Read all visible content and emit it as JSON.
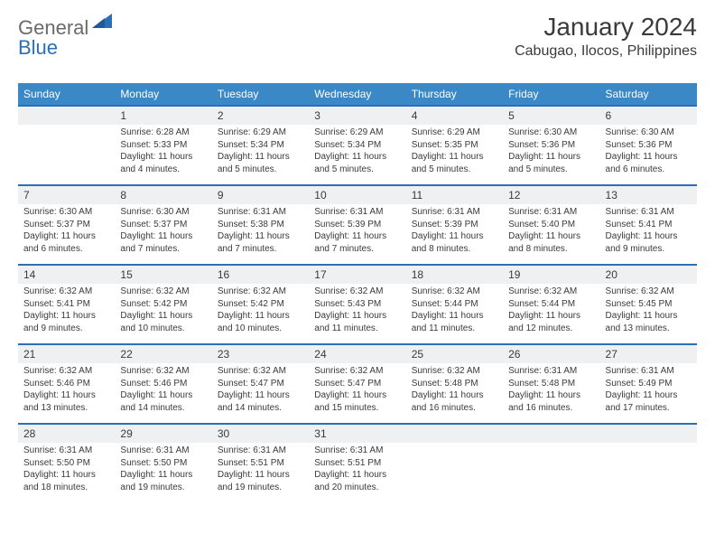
{
  "logo": {
    "text1": "General",
    "text2": "Blue",
    "triangle_color": "#2d6fb5"
  },
  "header": {
    "title": "January 2024",
    "location": "Cabugao, Ilocos, Philippines"
  },
  "colors": {
    "header_row_bg": "#3a88c6",
    "header_row_text": "#ffffff",
    "daynum_bg": "#eef0f1",
    "border_top": "#2d6fb5",
    "body_text": "#3a3a3a",
    "page_bg": "#ffffff"
  },
  "daysOfWeek": [
    "Sunday",
    "Monday",
    "Tuesday",
    "Wednesday",
    "Thursday",
    "Friday",
    "Saturday"
  ],
  "weeks": [
    [
      {
        "num": "",
        "sunrise": "",
        "sunset": "",
        "daylight": ""
      },
      {
        "num": "1",
        "sunrise": "Sunrise: 6:28 AM",
        "sunset": "Sunset: 5:33 PM",
        "daylight": "Daylight: 11 hours and 4 minutes."
      },
      {
        "num": "2",
        "sunrise": "Sunrise: 6:29 AM",
        "sunset": "Sunset: 5:34 PM",
        "daylight": "Daylight: 11 hours and 5 minutes."
      },
      {
        "num": "3",
        "sunrise": "Sunrise: 6:29 AM",
        "sunset": "Sunset: 5:34 PM",
        "daylight": "Daylight: 11 hours and 5 minutes."
      },
      {
        "num": "4",
        "sunrise": "Sunrise: 6:29 AM",
        "sunset": "Sunset: 5:35 PM",
        "daylight": "Daylight: 11 hours and 5 minutes."
      },
      {
        "num": "5",
        "sunrise": "Sunrise: 6:30 AM",
        "sunset": "Sunset: 5:36 PM",
        "daylight": "Daylight: 11 hours and 5 minutes."
      },
      {
        "num": "6",
        "sunrise": "Sunrise: 6:30 AM",
        "sunset": "Sunset: 5:36 PM",
        "daylight": "Daylight: 11 hours and 6 minutes."
      }
    ],
    [
      {
        "num": "7",
        "sunrise": "Sunrise: 6:30 AM",
        "sunset": "Sunset: 5:37 PM",
        "daylight": "Daylight: 11 hours and 6 minutes."
      },
      {
        "num": "8",
        "sunrise": "Sunrise: 6:30 AM",
        "sunset": "Sunset: 5:37 PM",
        "daylight": "Daylight: 11 hours and 7 minutes."
      },
      {
        "num": "9",
        "sunrise": "Sunrise: 6:31 AM",
        "sunset": "Sunset: 5:38 PM",
        "daylight": "Daylight: 11 hours and 7 minutes."
      },
      {
        "num": "10",
        "sunrise": "Sunrise: 6:31 AM",
        "sunset": "Sunset: 5:39 PM",
        "daylight": "Daylight: 11 hours and 7 minutes."
      },
      {
        "num": "11",
        "sunrise": "Sunrise: 6:31 AM",
        "sunset": "Sunset: 5:39 PM",
        "daylight": "Daylight: 11 hours and 8 minutes."
      },
      {
        "num": "12",
        "sunrise": "Sunrise: 6:31 AM",
        "sunset": "Sunset: 5:40 PM",
        "daylight": "Daylight: 11 hours and 8 minutes."
      },
      {
        "num": "13",
        "sunrise": "Sunrise: 6:31 AM",
        "sunset": "Sunset: 5:41 PM",
        "daylight": "Daylight: 11 hours and 9 minutes."
      }
    ],
    [
      {
        "num": "14",
        "sunrise": "Sunrise: 6:32 AM",
        "sunset": "Sunset: 5:41 PM",
        "daylight": "Daylight: 11 hours and 9 minutes."
      },
      {
        "num": "15",
        "sunrise": "Sunrise: 6:32 AM",
        "sunset": "Sunset: 5:42 PM",
        "daylight": "Daylight: 11 hours and 10 minutes."
      },
      {
        "num": "16",
        "sunrise": "Sunrise: 6:32 AM",
        "sunset": "Sunset: 5:42 PM",
        "daylight": "Daylight: 11 hours and 10 minutes."
      },
      {
        "num": "17",
        "sunrise": "Sunrise: 6:32 AM",
        "sunset": "Sunset: 5:43 PM",
        "daylight": "Daylight: 11 hours and 11 minutes."
      },
      {
        "num": "18",
        "sunrise": "Sunrise: 6:32 AM",
        "sunset": "Sunset: 5:44 PM",
        "daylight": "Daylight: 11 hours and 11 minutes."
      },
      {
        "num": "19",
        "sunrise": "Sunrise: 6:32 AM",
        "sunset": "Sunset: 5:44 PM",
        "daylight": "Daylight: 11 hours and 12 minutes."
      },
      {
        "num": "20",
        "sunrise": "Sunrise: 6:32 AM",
        "sunset": "Sunset: 5:45 PM",
        "daylight": "Daylight: 11 hours and 13 minutes."
      }
    ],
    [
      {
        "num": "21",
        "sunrise": "Sunrise: 6:32 AM",
        "sunset": "Sunset: 5:46 PM",
        "daylight": "Daylight: 11 hours and 13 minutes."
      },
      {
        "num": "22",
        "sunrise": "Sunrise: 6:32 AM",
        "sunset": "Sunset: 5:46 PM",
        "daylight": "Daylight: 11 hours and 14 minutes."
      },
      {
        "num": "23",
        "sunrise": "Sunrise: 6:32 AM",
        "sunset": "Sunset: 5:47 PM",
        "daylight": "Daylight: 11 hours and 14 minutes."
      },
      {
        "num": "24",
        "sunrise": "Sunrise: 6:32 AM",
        "sunset": "Sunset: 5:47 PM",
        "daylight": "Daylight: 11 hours and 15 minutes."
      },
      {
        "num": "25",
        "sunrise": "Sunrise: 6:32 AM",
        "sunset": "Sunset: 5:48 PM",
        "daylight": "Daylight: 11 hours and 16 minutes."
      },
      {
        "num": "26",
        "sunrise": "Sunrise: 6:31 AM",
        "sunset": "Sunset: 5:48 PM",
        "daylight": "Daylight: 11 hours and 16 minutes."
      },
      {
        "num": "27",
        "sunrise": "Sunrise: 6:31 AM",
        "sunset": "Sunset: 5:49 PM",
        "daylight": "Daylight: 11 hours and 17 minutes."
      }
    ],
    [
      {
        "num": "28",
        "sunrise": "Sunrise: 6:31 AM",
        "sunset": "Sunset: 5:50 PM",
        "daylight": "Daylight: 11 hours and 18 minutes."
      },
      {
        "num": "29",
        "sunrise": "Sunrise: 6:31 AM",
        "sunset": "Sunset: 5:50 PM",
        "daylight": "Daylight: 11 hours and 19 minutes."
      },
      {
        "num": "30",
        "sunrise": "Sunrise: 6:31 AM",
        "sunset": "Sunset: 5:51 PM",
        "daylight": "Daylight: 11 hours and 19 minutes."
      },
      {
        "num": "31",
        "sunrise": "Sunrise: 6:31 AM",
        "sunset": "Sunset: 5:51 PM",
        "daylight": "Daylight: 11 hours and 20 minutes."
      },
      {
        "num": "",
        "sunrise": "",
        "sunset": "",
        "daylight": ""
      },
      {
        "num": "",
        "sunrise": "",
        "sunset": "",
        "daylight": ""
      },
      {
        "num": "",
        "sunrise": "",
        "sunset": "",
        "daylight": ""
      }
    ]
  ]
}
